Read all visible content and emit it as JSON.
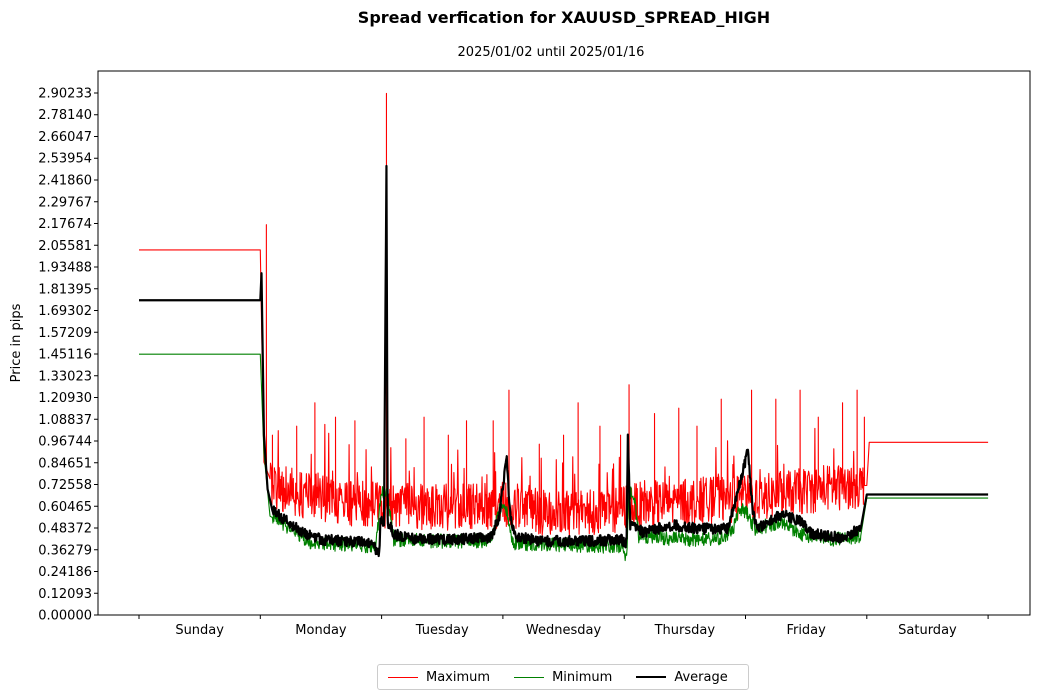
{
  "chart_data": {
    "type": "line",
    "title": "Spread verfication for XAUUSD_SPREAD_HIGH",
    "subtitle": "2025/01/02 until 2025/01/16",
    "ylabel": "Price in pips",
    "xlabel": "",
    "ylim": [
      0,
      2.96
    ],
    "yticks": [
      "0.00000",
      "0.12093",
      "0.24186",
      "0.36279",
      "0.48372",
      "0.60465",
      "0.72558",
      "0.84651",
      "0.96744",
      "1.08837",
      "1.20930",
      "1.33023",
      "1.45116",
      "1.57209",
      "1.69302",
      "1.81395",
      "1.93488",
      "2.05581",
      "2.17674",
      "2.29767",
      "2.41860",
      "2.53954",
      "2.66047",
      "2.78140",
      "2.90233"
    ],
    "categories": [
      "Sunday",
      "Monday",
      "Tuesday",
      "Wednesday",
      "Thursday",
      "Friday",
      "Saturday"
    ],
    "xlim": [
      -0.35,
      7.0
    ],
    "series": [
      {
        "name": "Maximum",
        "color": "#ff0000",
        "base": [
          [
            0.0,
            2.03
          ],
          [
            1.0,
            2.03
          ],
          [
            1.03,
            0.85
          ],
          [
            1.1,
            0.72
          ],
          [
            1.4,
            0.66
          ],
          [
            1.8,
            0.62
          ],
          [
            2.05,
            0.61
          ],
          [
            2.4,
            0.6
          ],
          [
            2.9,
            0.6
          ],
          [
            3.05,
            0.62
          ],
          [
            3.4,
            0.56
          ],
          [
            3.9,
            0.58
          ],
          [
            4.0,
            0.6
          ],
          [
            4.3,
            0.62
          ],
          [
            4.8,
            0.64
          ],
          [
            5.2,
            0.66
          ],
          [
            5.6,
            0.7
          ],
          [
            5.9,
            0.72
          ],
          [
            6.0,
            0.72
          ],
          [
            6.02,
            0.96
          ],
          [
            7.0,
            0.96
          ]
        ],
        "spikes": [
          [
            1.05,
            2.17
          ],
          [
            1.1,
            1.0
          ],
          [
            1.3,
            1.05
          ],
          [
            1.45,
            1.18
          ],
          [
            1.62,
            1.1
          ],
          [
            1.78,
            1.08
          ],
          [
            2.04,
            2.9
          ],
          [
            2.2,
            0.98
          ],
          [
            2.35,
            1.1
          ],
          [
            2.55,
            1.0
          ],
          [
            2.7,
            1.08
          ],
          [
            2.92,
            1.08
          ],
          [
            3.05,
            1.25
          ],
          [
            3.3,
            0.95
          ],
          [
            3.5,
            1.0
          ],
          [
            3.62,
            1.18
          ],
          [
            3.8,
            1.05
          ],
          [
            3.97,
            1.0
          ],
          [
            4.04,
            1.28
          ],
          [
            4.25,
            1.12
          ],
          [
            4.45,
            1.15
          ],
          [
            4.6,
            1.05
          ],
          [
            4.8,
            1.2
          ],
          [
            5.05,
            1.25
          ],
          [
            5.25,
            1.2
          ],
          [
            5.45,
            1.25
          ],
          [
            5.6,
            1.1
          ],
          [
            5.8,
            1.18
          ],
          [
            5.92,
            1.25
          ],
          [
            5.98,
            1.1
          ]
        ],
        "noise_amp": 0.13,
        "noise_start": 1.08,
        "noise_end": 5.98
      },
      {
        "name": "Minimum",
        "color": "#008000",
        "base": [
          [
            0.0,
            1.45
          ],
          [
            1.0,
            1.45
          ],
          [
            1.03,
            0.9
          ],
          [
            1.08,
            0.55
          ],
          [
            1.2,
            0.5
          ],
          [
            1.3,
            0.46
          ],
          [
            1.4,
            0.4
          ],
          [
            1.8,
            0.39
          ],
          [
            1.95,
            0.38
          ],
          [
            2.0,
            0.68
          ],
          [
            2.04,
            0.68
          ],
          [
            2.1,
            0.42
          ],
          [
            2.5,
            0.41
          ],
          [
            2.9,
            0.41
          ],
          [
            2.97,
            0.58
          ],
          [
            3.03,
            0.58
          ],
          [
            3.08,
            0.4
          ],
          [
            3.5,
            0.39
          ],
          [
            3.98,
            0.38
          ],
          [
            4.0,
            0.34
          ],
          [
            4.02,
            0.34
          ],
          [
            4.04,
            0.68
          ],
          [
            4.08,
            0.68
          ],
          [
            4.12,
            0.44
          ],
          [
            4.5,
            0.42
          ],
          [
            4.8,
            0.42
          ],
          [
            4.9,
            0.48
          ],
          [
            4.95,
            0.58
          ],
          [
            5.0,
            0.58
          ],
          [
            5.08,
            0.48
          ],
          [
            5.3,
            0.52
          ],
          [
            5.45,
            0.45
          ],
          [
            5.7,
            0.42
          ],
          [
            5.95,
            0.44
          ],
          [
            6.0,
            0.65
          ],
          [
            7.0,
            0.65
          ]
        ],
        "spikes": [],
        "noise_amp": 0.04,
        "noise_start": 1.1,
        "noise_end": 5.95
      },
      {
        "name": "Average",
        "color": "#000000",
        "base": [
          [
            0.0,
            1.75
          ],
          [
            1.0,
            1.75
          ],
          [
            1.01,
            1.9
          ],
          [
            1.03,
            1.0
          ],
          [
            1.06,
            0.7
          ],
          [
            1.1,
            0.58
          ],
          [
            1.2,
            0.53
          ],
          [
            1.35,
            0.46
          ],
          [
            1.5,
            0.42
          ],
          [
            1.9,
            0.4
          ],
          [
            1.96,
            0.36
          ],
          [
            1.98,
            0.34
          ],
          [
            1.99,
            0.52
          ],
          [
            2.02,
            0.52
          ],
          [
            2.04,
            2.5
          ],
          [
            2.05,
            0.52
          ],
          [
            2.1,
            0.45
          ],
          [
            2.3,
            0.42
          ],
          [
            2.6,
            0.42
          ],
          [
            2.9,
            0.43
          ],
          [
            2.97,
            0.55
          ],
          [
            3.03,
            0.88
          ],
          [
            3.06,
            0.55
          ],
          [
            3.1,
            0.44
          ],
          [
            3.3,
            0.41
          ],
          [
            3.7,
            0.41
          ],
          [
            3.98,
            0.42
          ],
          [
            4.0,
            0.4
          ],
          [
            4.02,
            0.4
          ],
          [
            4.03,
            1.02
          ],
          [
            4.05,
            0.5
          ],
          [
            4.1,
            0.5
          ],
          [
            4.15,
            0.46
          ],
          [
            4.4,
            0.5
          ],
          [
            4.6,
            0.48
          ],
          [
            4.85,
            0.48
          ],
          [
            4.9,
            0.58
          ],
          [
            5.02,
            0.92
          ],
          [
            5.06,
            0.58
          ],
          [
            5.1,
            0.48
          ],
          [
            5.3,
            0.56
          ],
          [
            5.45,
            0.52
          ],
          [
            5.55,
            0.45
          ],
          [
            5.8,
            0.43
          ],
          [
            5.95,
            0.48
          ],
          [
            6.0,
            0.67
          ],
          [
            7.0,
            0.67
          ]
        ],
        "spikes": [],
        "noise_amp": 0.03,
        "noise_start": 1.1,
        "noise_end": 5.95
      }
    ]
  }
}
